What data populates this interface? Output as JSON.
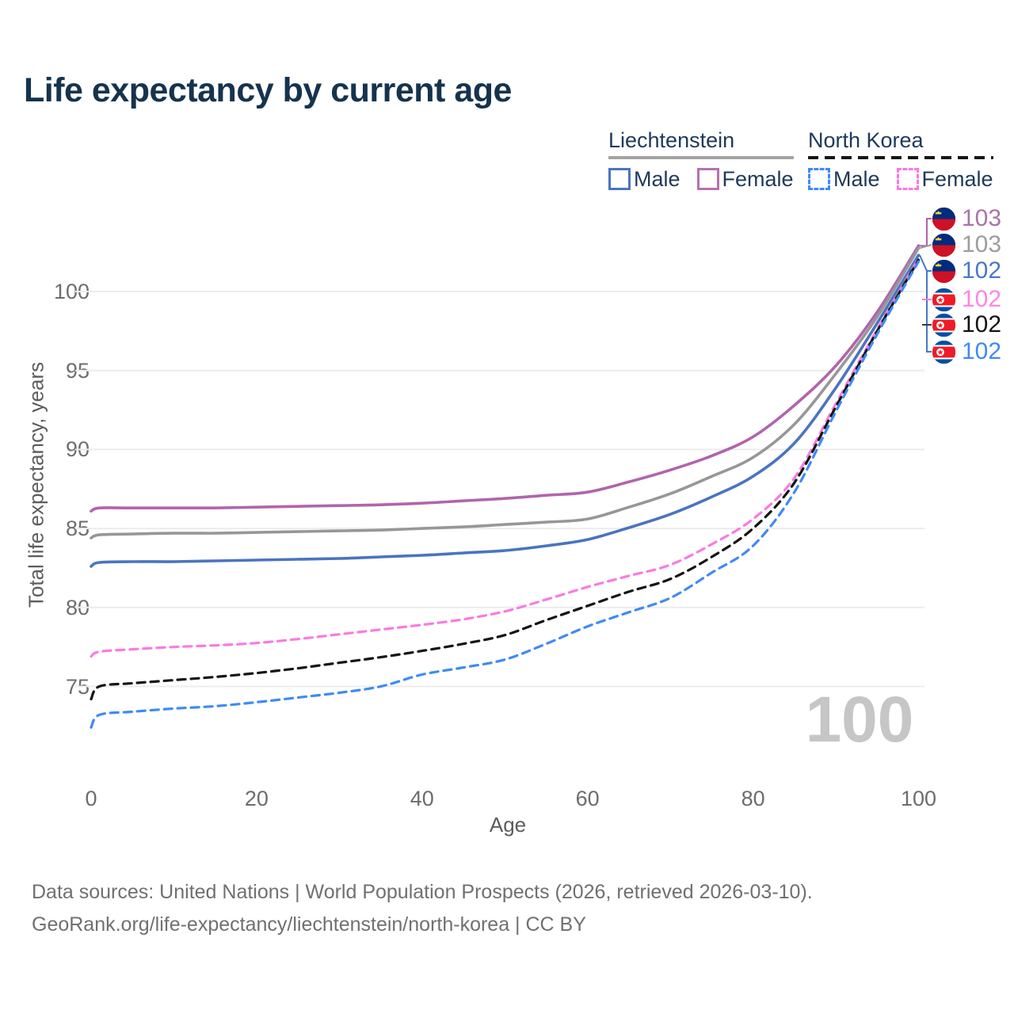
{
  "page_title": "Life expectancy by current age",
  "legend": {
    "groups": [
      {
        "label": "Liechtenstein",
        "line_style": "solid",
        "line_color": "#a3a3a3",
        "items": [
          {
            "label": "Male",
            "color": "#4a74c0",
            "dashed": false
          },
          {
            "label": "Female",
            "color": "#b571ae",
            "dashed": false
          }
        ]
      },
      {
        "label": "North Korea",
        "line_style": "dashed",
        "line_color": "#161616",
        "items": [
          {
            "label": "Male",
            "color": "#3f8af5",
            "dashed": true
          },
          {
            "label": "Female",
            "color": "#f97ae1",
            "dashed": true
          }
        ]
      }
    ]
  },
  "chart_data": {
    "type": "line",
    "title": "Life expectancy by current age",
    "xlabel": "Age",
    "ylabel": "Total life expectancy, years",
    "x_ticks": [
      0,
      20,
      40,
      60,
      80,
      100
    ],
    "y_ticks": [
      75,
      80,
      85,
      90,
      95,
      100
    ],
    "xlim": [
      0,
      100
    ],
    "ylim": [
      71.5,
      104.5
    ],
    "grid": "horizontal-only",
    "legend_position": "top-right",
    "watermark": "100",
    "ages": [
      0,
      1,
      5,
      10,
      15,
      20,
      25,
      30,
      35,
      40,
      45,
      50,
      55,
      60,
      65,
      70,
      75,
      80,
      85,
      90,
      95,
      100
    ],
    "series": [
      {
        "name": "Liechtenstein Female",
        "country": "Liechtenstein",
        "sex": "Female",
        "color": "#b164ad",
        "dashed": false,
        "flag": "liechtenstein-flag-icon",
        "end_label": "103",
        "end_label_color": "#a973a9",
        "values": [
          86.1,
          86.3,
          86.3,
          86.3,
          86.3,
          86.35,
          86.4,
          86.45,
          86.5,
          86.6,
          86.75,
          86.9,
          87.1,
          87.3,
          87.95,
          88.7,
          89.6,
          90.8,
          92.8,
          95.3,
          98.7,
          102.9
        ]
      },
      {
        "name": "Liechtenstein Both sexes",
        "country": "Liechtenstein",
        "sex": "Both",
        "color": "#979797",
        "dashed": false,
        "flag": "liechtenstein-flag-icon",
        "end_label": "103",
        "end_label_color": "#9d9d9d",
        "values": [
          84.4,
          84.6,
          84.65,
          84.7,
          84.7,
          84.75,
          84.8,
          84.85,
          84.9,
          85.0,
          85.1,
          85.25,
          85.4,
          85.6,
          86.35,
          87.2,
          88.3,
          89.5,
          91.6,
          94.8,
          98.4,
          102.75
        ]
      },
      {
        "name": "Liechtenstein Male",
        "country": "Liechtenstein",
        "sex": "Male",
        "color": "#4a74c0",
        "dashed": false,
        "flag": "liechtenstein-flag-icon",
        "end_label": "102",
        "end_label_color": "#4a77c9",
        "values": [
          82.6,
          82.85,
          82.9,
          82.9,
          82.95,
          83.0,
          83.05,
          83.1,
          83.2,
          83.3,
          83.45,
          83.6,
          83.9,
          84.3,
          85.05,
          85.9,
          87.0,
          88.3,
          90.4,
          93.9,
          98.0,
          102.3
        ]
      },
      {
        "name": "North Korea Female",
        "country": "North Korea",
        "sex": "Female",
        "color": "#f97ae1",
        "dashed": true,
        "flag": "north-korea-flag-icon",
        "end_label": "102",
        "end_label_color": "#ff85e1",
        "values": [
          76.9,
          77.2,
          77.35,
          77.5,
          77.6,
          77.75,
          78.0,
          78.3,
          78.6,
          78.9,
          79.25,
          79.75,
          80.5,
          81.3,
          82.0,
          82.7,
          84.0,
          85.6,
          88.2,
          92.9,
          97.6,
          102.1
        ]
      },
      {
        "name": "North Korea Both sexes",
        "country": "North Korea",
        "sex": "Both",
        "color": "#151515",
        "dashed": true,
        "flag": "north-korea-flag-icon",
        "end_label": "102",
        "end_label_color": "#141414",
        "values": [
          74.2,
          75.0,
          75.2,
          75.4,
          75.6,
          75.85,
          76.15,
          76.5,
          76.85,
          77.25,
          77.7,
          78.25,
          79.2,
          80.1,
          81.0,
          81.8,
          83.2,
          85.0,
          87.9,
          92.7,
          97.5,
          102.0
        ]
      },
      {
        "name": "North Korea Male",
        "country": "North Korea",
        "sex": "Male",
        "color": "#3f8af5",
        "dashed": true,
        "flag": "north-korea-flag-icon",
        "end_label": "102",
        "end_label_color": "#3f8af5",
        "values": [
          72.4,
          73.2,
          73.4,
          73.6,
          73.75,
          74.0,
          74.3,
          74.6,
          75.0,
          75.75,
          76.2,
          76.7,
          77.7,
          78.8,
          79.7,
          80.6,
          82.2,
          83.9,
          87.3,
          92.4,
          97.3,
          101.9
        ]
      }
    ]
  },
  "footer": {
    "line1": "Data sources: United Nations | World Population Prospects (2026, retrieved 2026-03-10).",
    "line2": "GeoRank.org/life-expectancy/liechtenstein/north-korea | CC BY"
  }
}
